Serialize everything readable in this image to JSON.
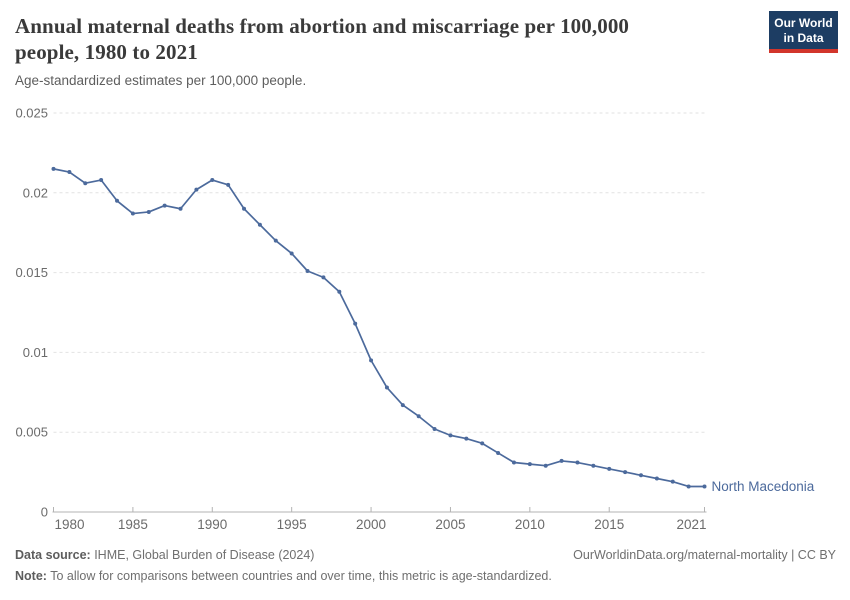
{
  "header": {
    "title": "Annual maternal deaths from abortion and miscarriage per 100,000 people, 1980 to 2021",
    "title_lines": [
      "Annual maternal deaths from abortion and miscarriage per 100,000",
      "people, 1980 to 2021"
    ],
    "subtitle": "Age-standardized estimates per 100,000 people.",
    "logo": {
      "line1": "Our World",
      "line2": "in Data"
    }
  },
  "chart_data": {
    "type": "line",
    "title": "Annual maternal deaths from abortion and miscarriage per 100,000 people, 1980 to 2021",
    "subtitle": "Age-standardized estimates per 100,000 people.",
    "xlabel": "",
    "ylabel": "",
    "xlim": [
      1980,
      2021
    ],
    "ylim": [
      0,
      0.025
    ],
    "grid": true,
    "legend_position": "end-of-line",
    "x_ticks": [
      1980,
      1985,
      1990,
      1995,
      2000,
      2005,
      2010,
      2015,
      2021
    ],
    "y_ticks": [
      0,
      0.005,
      0.01,
      0.015,
      0.02,
      0.025
    ],
    "y_tick_labels": [
      "0",
      "0.005",
      "0.01",
      "0.015",
      "0.02",
      "0.025"
    ],
    "series": [
      {
        "name": "North Macedonia",
        "color": "#4C6A9C",
        "x": [
          1980,
          1981,
          1982,
          1983,
          1984,
          1985,
          1986,
          1987,
          1988,
          1989,
          1990,
          1991,
          1992,
          1993,
          1994,
          1995,
          1996,
          1997,
          1998,
          1999,
          2000,
          2001,
          2002,
          2003,
          2004,
          2005,
          2006,
          2007,
          2008,
          2009,
          2010,
          2011,
          2012,
          2013,
          2014,
          2015,
          2016,
          2017,
          2018,
          2019,
          2020,
          2021
        ],
        "values": [
          0.0215,
          0.0213,
          0.0206,
          0.0208,
          0.0195,
          0.0187,
          0.0188,
          0.0192,
          0.019,
          0.0202,
          0.0208,
          0.0205,
          0.019,
          0.018,
          0.017,
          0.0162,
          0.0151,
          0.0147,
          0.0138,
          0.0118,
          0.0095,
          0.0078,
          0.0067,
          0.006,
          0.0052,
          0.0048,
          0.0046,
          0.0043,
          0.0037,
          0.0031,
          0.003,
          0.0029,
          0.0032,
          0.0031,
          0.0029,
          0.0027,
          0.0025,
          0.0023,
          0.0021,
          0.0019,
          0.0016,
          0.0016
        ]
      }
    ],
    "end_label": "North Macedonia"
  },
  "footer": {
    "source_label": "Data source:",
    "source_text": " IHME, Global Burden of Disease (2024)",
    "attribution": "OurWorldinData.org/maternal-mortality | CC BY",
    "note_label": "Note:",
    "note_text": " To allow for comparisons between countries and over time, this metric is age-standardized."
  },
  "colors": {
    "series_blue": "#4C6A9C",
    "grid": "#e2e2e2",
    "axis": "#b3b3b3",
    "tick_text": "#6b6b6b",
    "logo_navy": "#1d3d63",
    "logo_red": "#d2352b"
  }
}
